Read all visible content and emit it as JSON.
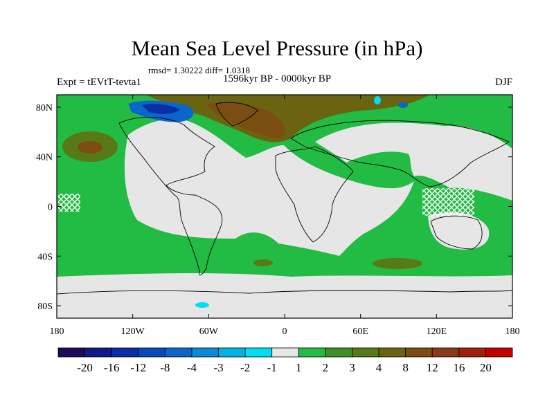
{
  "title": "Mean Sea Level Pressure (in hPa)",
  "stats": "rmsd= 1.30222 diff= 1.0318",
  "experiment": "Expt = tEVtT-tevta1",
  "period": "1596kyr BP - 0000kyr BP",
  "season": "DJF",
  "lon_ticks": [
    "180",
    "120W",
    "60W",
    "0",
    "60E",
    "120E",
    "180"
  ],
  "lat_ticks": [
    "80N",
    "40N",
    "0",
    "40S",
    "80S"
  ],
  "colorbar": {
    "colors": [
      "#1f0a5c",
      "#101a8c",
      "#0a2ea8",
      "#0a4ab8",
      "#0a66c8",
      "#0a8ad8",
      "#00b4e6",
      "#00dcf0",
      "#e6e6e6",
      "#22bb44",
      "#3f8f28",
      "#587a16",
      "#6a6410",
      "#7a4e12",
      "#8a3a16",
      "#a02010",
      "#c40000"
    ],
    "labels": [
      "-20",
      "-16",
      "-12",
      "-8",
      "-4",
      "-3",
      "-2",
      "-1",
      "1",
      "2",
      "3",
      "4",
      "8",
      "12",
      "16",
      "20"
    ]
  },
  "chart_data": {
    "type": "heatmap",
    "variable": "Mean Sea Level Pressure difference",
    "units": "hPa",
    "levels": [
      -20,
      -16,
      -12,
      -8,
      -4,
      -3,
      -2,
      -1,
      1,
      2,
      3,
      4,
      8,
      12,
      16,
      20
    ],
    "lon_range": [
      -180,
      180
    ],
    "lat_range": [
      -90,
      90
    ],
    "rmsd": 1.30222,
    "diff": 1.0318
  }
}
